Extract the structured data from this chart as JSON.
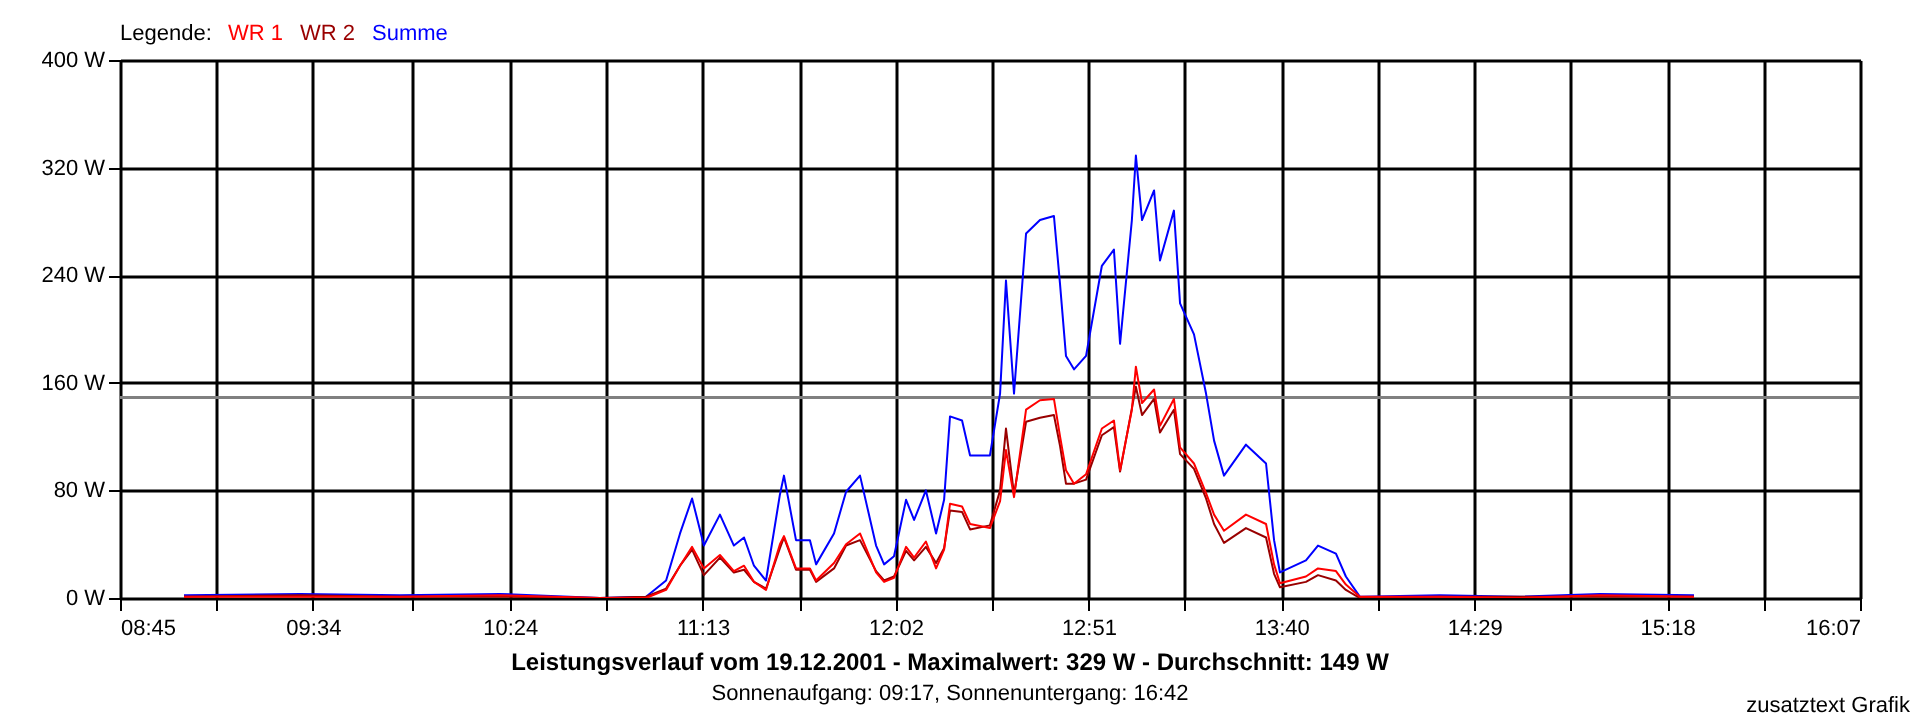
{
  "chart_data": {
    "type": "line",
    "title": "Leistungsverlauf vom 19.12.2001 - Maximalwert: 329 W - Durchschnitt: 149 W",
    "subtitle": "Sonnenaufgang: 09:17, Sonnenuntergang: 16:42",
    "legend_title": "Legende:",
    "annotations": [
      "zusatztext Grafik"
    ],
    "x": [
      9.021,
      9.512,
      9.935,
      10.359,
      10.782,
      10.977,
      11.062,
      11.121,
      11.172,
      11.222,
      11.29,
      11.349,
      11.392,
      11.434,
      11.485,
      11.544,
      11.561,
      11.612,
      11.671,
      11.697,
      11.773,
      11.824,
      11.883,
      11.951,
      11.985,
      12.027,
      12.078,
      12.112,
      12.162,
      12.205,
      12.239,
      12.264,
      12.315,
      12.349,
      12.433,
      12.476,
      12.501,
      12.535,
      12.586,
      12.645,
      12.704,
      12.73,
      12.755,
      12.789,
      12.84,
      12.907,
      12.958,
      12.984,
      13.034,
      13.051,
      13.077,
      13.128,
      13.153,
      13.212,
      13.238,
      13.297,
      13.348,
      13.382,
      13.424,
      13.517,
      13.602,
      13.636,
      13.661,
      13.771,
      13.822,
      13.898,
      13.94,
      13.999,
      14.338,
      14.677,
      15.016,
      15.414
    ],
    "series": [
      {
        "name": "Summe",
        "color": "#0000ff",
        "values": [
          2,
          3,
          2,
          3,
          0,
          1,
          13,
          48,
          74,
          39,
          62,
          39,
          45,
          24,
          13,
          77,
          91,
          43,
          43,
          25,
          48,
          79,
          91,
          39,
          25,
          31,
          73,
          58,
          80,
          48,
          73,
          135,
          132,
          106,
          106,
          152,
          236,
          152,
          271,
          281,
          284,
          233,
          180,
          170,
          180,
          247,
          259,
          189,
          281,
          329,
          281,
          303,
          251,
          288,
          219,
          196,
          152,
          117,
          91,
          114,
          100,
          43,
          19,
          28,
          39,
          33,
          16,
          1,
          2,
          1,
          3,
          2
        ]
      },
      {
        "name": "WR 2",
        "color": "#990000",
        "values": [
          1,
          2,
          1,
          1,
          0,
          1,
          7,
          24,
          36,
          17,
          30,
          19,
          21,
          12,
          7,
          37,
          45,
          21,
          21,
          12,
          22,
          39,
          43,
          20,
          13,
          16,
          35,
          28,
          38,
          26,
          37,
          65,
          64,
          51,
          54,
          80,
          126,
          77,
          131,
          134,
          136,
          113,
          85,
          85,
          88,
          121,
          127,
          94,
          141,
          157,
          136,
          148,
          123,
          140,
          107,
          96,
          74,
          55,
          41,
          52,
          45,
          18,
          8,
          12,
          17,
          13,
          6,
          0,
          1,
          1,
          1,
          1
        ]
      },
      {
        "name": "WR 1",
        "color": "#ff0000",
        "values": [
          1,
          1,
          1,
          2,
          0,
          0,
          6,
          24,
          38,
          22,
          32,
          20,
          24,
          12,
          6,
          40,
          46,
          22,
          22,
          13,
          26,
          40,
          48,
          19,
          12,
          15,
          38,
          30,
          42,
          22,
          36,
          70,
          68,
          55,
          52,
          72,
          110,
          75,
          140,
          147,
          148,
          120,
          95,
          85,
          92,
          126,
          132,
          95,
          140,
          172,
          145,
          155,
          128,
          148,
          112,
          100,
          78,
          62,
          50,
          62,
          55,
          25,
          11,
          16,
          22,
          20,
          10,
          1,
          1,
          0,
          2,
          1
        ]
      }
    ],
    "xlim": [
      8.75,
      16.1167
    ],
    "xticks": [
      {
        "value": 8.75,
        "label": "08:45"
      },
      {
        "value": 9.1583,
        "label": null
      },
      {
        "value": 9.5667,
        "label": "09:34"
      },
      {
        "value": 9.9833,
        "label": null
      },
      {
        "value": 10.4,
        "label": "10:24"
      },
      {
        "value": 10.8083,
        "label": null
      },
      {
        "value": 11.2167,
        "label": "11:13"
      },
      {
        "value": 11.625,
        "label": null
      },
      {
        "value": 12.0333,
        "label": "12:02"
      },
      {
        "value": 12.4417,
        "label": null
      },
      {
        "value": 12.85,
        "label": "12:51"
      },
      {
        "value": 13.2583,
        "label": null
      },
      {
        "value": 13.6667,
        "label": "13:40"
      },
      {
        "value": 14.075,
        "label": null
      },
      {
        "value": 14.4833,
        "label": "14:29"
      },
      {
        "value": 14.8917,
        "label": null
      },
      {
        "value": 15.3,
        "label": "15:18"
      },
      {
        "value": 15.7083,
        "label": null
      },
      {
        "value": 16.1167,
        "label": "16:07"
      }
    ],
    "ylim": [
      0,
      400
    ],
    "yticks": [
      {
        "value": 0,
        "label": "0 W"
      },
      {
        "value": 80,
        "label": "80 W"
      },
      {
        "value": 160,
        "label": "160 W"
      },
      {
        "value": 240,
        "label": "240 W"
      },
      {
        "value": 320,
        "label": "320 W"
      },
      {
        "value": 400,
        "label": "400 W"
      }
    ],
    "ref_lines": [
      {
        "axis": "y",
        "value": 149,
        "color": "#808080"
      }
    ],
    "grid": true,
    "legend": "top left",
    "marker": "none",
    "line_style": "solid"
  }
}
